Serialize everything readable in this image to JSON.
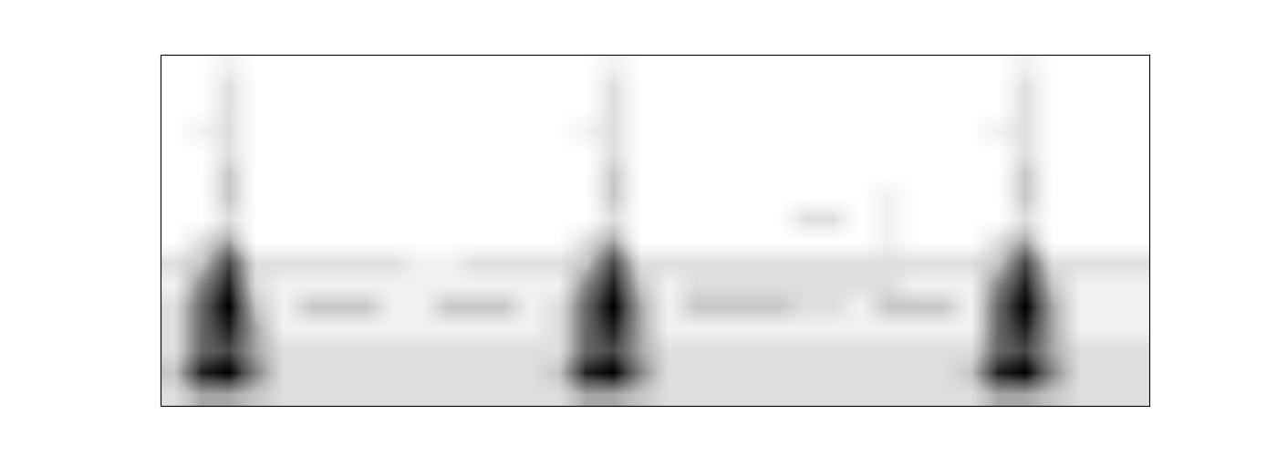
{
  "chart_data": {
    "type": "heatmap",
    "tick_labels": false,
    "cells": [
      [
        0,
        0,
        1,
        0,
        0,
        0,
        0,
        0,
        0,
        0,
        0,
        0,
        0,
        0,
        0,
        0,
        1,
        0,
        0,
        0,
        0,
        0,
        0,
        0,
        0,
        0,
        0,
        0,
        0,
        0,
        0,
        1,
        0,
        0,
        0,
        0
      ],
      [
        0,
        0,
        2,
        0,
        0,
        0,
        0,
        0,
        0,
        0,
        0,
        0,
        0,
        0,
        0,
        0,
        2,
        0,
        0,
        0,
        0,
        0,
        0,
        0,
        0,
        0,
        0,
        0,
        0,
        0,
        0,
        2,
        0,
        0,
        0,
        0
      ],
      [
        0,
        0,
        2,
        0,
        0,
        0,
        0,
        0,
        0,
        0,
        0,
        0,
        0,
        0,
        0,
        0,
        2,
        0,
        0,
        0,
        0,
        0,
        0,
        0,
        0,
        0,
        0,
        0,
        0,
        0,
        0,
        2,
        0,
        0,
        0,
        0
      ],
      [
        0,
        1,
        2,
        0,
        0,
        0,
        0,
        0,
        0,
        0,
        0,
        0,
        0,
        0,
        0,
        1,
        2,
        0,
        0,
        0,
        0,
        0,
        0,
        0,
        0,
        0,
        0,
        0,
        0,
        0,
        1,
        2,
        0,
        0,
        0,
        0
      ],
      [
        0,
        0,
        2,
        0,
        0,
        0,
        0,
        0,
        0,
        0,
        0,
        0,
        0,
        0,
        0,
        0,
        2,
        0,
        0,
        0,
        0,
        0,
        0,
        0,
        0,
        0,
        0,
        0,
        0,
        0,
        0,
        2,
        0,
        0,
        0,
        0
      ],
      [
        0,
        0,
        3,
        0,
        0,
        0,
        0,
        0,
        0,
        0,
        0,
        0,
        0,
        0,
        0,
        0,
        3,
        0,
        0,
        0,
        0,
        0,
        0,
        0,
        0,
        0,
        0,
        0,
        0,
        0,
        0,
        3,
        0,
        0,
        0,
        0
      ],
      [
        0,
        0,
        3,
        0,
        0,
        0,
        0,
        0,
        0,
        0,
        0,
        0,
        0,
        0,
        0,
        0,
        3,
        0,
        0,
        0,
        0,
        0,
        0,
        0,
        0,
        0,
        1,
        0,
        0,
        0,
        0,
        3,
        0,
        0,
        0,
        0
      ],
      [
        0,
        0,
        2,
        0,
        0,
        0,
        0,
        0,
        0,
        0,
        0,
        0,
        0,
        0,
        0,
        0,
        2,
        0,
        0,
        0,
        0,
        0,
        0,
        2,
        2,
        0,
        1,
        0,
        0,
        0,
        0,
        2,
        0,
        0,
        0,
        0
      ],
      [
        0,
        2,
        4,
        0,
        0,
        0,
        0,
        0,
        0,
        0,
        0,
        0,
        0,
        0,
        0,
        2,
        4,
        0,
        0,
        0,
        0,
        0,
        0,
        0,
        0,
        0,
        1,
        0,
        0,
        0,
        2,
        4,
        0,
        0,
        0,
        0
      ],
      [
        2,
        3,
        7,
        2,
        2,
        2,
        2,
        2,
        2,
        1,
        1,
        2,
        2,
        2,
        2,
        3,
        7,
        2,
        2,
        2,
        2,
        2,
        2,
        2,
        2,
        2,
        2,
        2,
        2,
        2,
        3,
        7,
        2,
        2,
        2,
        2
      ],
      [
        1,
        5,
        8,
        2,
        1,
        1,
        1,
        1,
        1,
        1,
        1,
        1,
        1,
        1,
        1,
        5,
        8,
        3,
        1,
        2,
        2,
        2,
        2,
        2,
        2,
        2,
        2,
        1,
        1,
        1,
        5,
        8,
        3,
        1,
        1,
        1
      ],
      [
        2,
        6,
        9,
        3,
        1,
        3,
        3,
        3,
        1,
        1,
        3,
        3,
        3,
        1,
        2,
        6,
        9,
        4,
        1,
        3,
        3,
        3,
        3,
        2,
        2,
        1,
        3,
        3,
        3,
        1,
        6,
        9,
        4,
        1,
        1,
        1
      ],
      [
        2,
        6,
        8,
        4,
        1,
        1,
        1,
        1,
        1,
        1,
        1,
        1,
        1,
        1,
        2,
        6,
        8,
        4,
        1,
        1,
        1,
        1,
        1,
        1,
        1,
        1,
        1,
        1,
        1,
        1,
        6,
        8,
        4,
        1,
        1,
        1
      ],
      [
        2,
        6,
        7,
        4,
        2,
        2,
        2,
        2,
        2,
        2,
        2,
        2,
        2,
        2,
        2,
        6,
        7,
        4,
        2,
        2,
        2,
        2,
        2,
        2,
        2,
        2,
        2,
        2,
        2,
        2,
        6,
        7,
        4,
        2,
        2,
        2
      ],
      [
        3,
        8,
        9,
        5,
        2,
        2,
        2,
        2,
        2,
        2,
        2,
        2,
        2,
        2,
        3,
        8,
        9,
        5,
        2,
        2,
        2,
        2,
        2,
        2,
        2,
        2,
        2,
        2,
        2,
        3,
        8,
        9,
        5,
        2,
        2,
        2
      ],
      [
        2,
        4,
        4,
        3,
        2,
        2,
        2,
        2,
        2,
        2,
        2,
        2,
        2,
        2,
        2,
        4,
        4,
        3,
        2,
        2,
        2,
        2,
        2,
        2,
        2,
        2,
        2,
        2,
        2,
        2,
        4,
        4,
        3,
        2,
        2,
        2
      ]
    ]
  }
}
